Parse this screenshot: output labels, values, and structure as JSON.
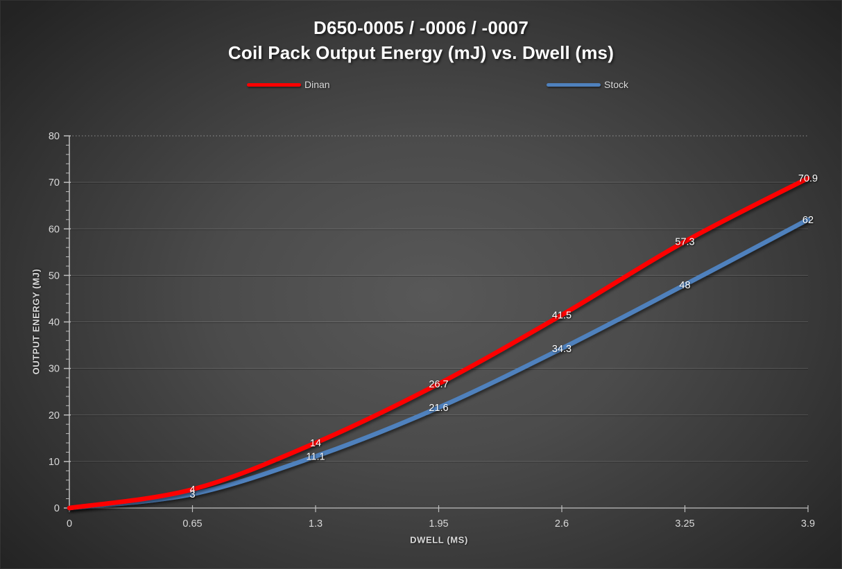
{
  "title": {
    "line1": "D650-0005 / -0006 / -0007",
    "line2": "Coil Pack Output Energy (mJ) vs. Dwell (ms)"
  },
  "chart_data": {
    "type": "line",
    "title_line1": "D650-0005 / -0006 / -0007",
    "title_line2": "Coil Pack Output Energy (mJ) vs. Dwell (ms)",
    "xlabel": "DWELL (MS)",
    "ylabel": "OUTPUT ENERGY (MJ)",
    "x": [
      0,
      0.65,
      1.3,
      1.95,
      2.6,
      3.25,
      3.9
    ],
    "xtick_labels": [
      "0",
      "0.65",
      "1.3",
      "1.95",
      "2.6",
      "3.25",
      "3.9"
    ],
    "yticks": [
      0,
      10,
      20,
      30,
      40,
      50,
      60,
      70,
      80
    ],
    "xlim": [
      0,
      3.9
    ],
    "ylim": [
      0,
      80
    ],
    "y_minor_step": 2,
    "grid": "horizontal, top gridline dotted",
    "legend_position": "top",
    "smooth_lines": true,
    "series": [
      {
        "name": "Dinan",
        "color": "#FF0000",
        "values": [
          0,
          4,
          14,
          26.7,
          41.5,
          57.3,
          70.9
        ],
        "point_labels": [
          "",
          "4",
          "14",
          "26.7",
          "41.5",
          "57.3",
          "70.9"
        ]
      },
      {
        "name": "Stock",
        "color": "#4F81BD",
        "values": [
          0,
          3,
          11.1,
          21.6,
          34.3,
          48,
          62
        ],
        "point_labels": [
          "",
          "3",
          "11.1",
          "21.6",
          "34.3",
          "48",
          "62"
        ]
      }
    ]
  },
  "colors": {
    "background_center": "#585858",
    "background_edge": "#232323",
    "gridline": "rgba(255,255,255,0.17)",
    "gridline_top_dotted": "rgba(255,255,255,0.45)",
    "axis_line": "#BFBFBF",
    "tick_label": "#D9D9D9",
    "data_label": "#FFFFFF",
    "title_text": "#FFFFFF"
  }
}
